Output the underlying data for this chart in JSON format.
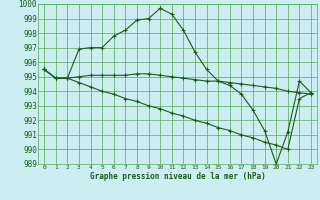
{
  "title": "Graphe pression niveau de la mer (hPa)",
  "background_color": "#cceef0",
  "grid_color": "#55aa55",
  "line_color": "#1a5c1a",
  "line1": [
    995.5,
    994.9,
    994.9,
    996.9,
    997.0,
    997.0,
    997.8,
    998.2,
    998.9,
    999.0,
    999.7,
    999.3,
    998.2,
    996.7,
    995.5,
    994.7,
    994.4,
    993.8,
    992.7,
    991.3,
    989.0,
    991.2,
    994.7,
    993.9
  ],
  "line2": [
    995.5,
    994.9,
    994.9,
    995.0,
    995.1,
    995.1,
    995.1,
    995.1,
    995.2,
    995.2,
    995.1,
    995.0,
    994.9,
    994.8,
    994.7,
    994.7,
    994.6,
    994.5,
    994.4,
    994.3,
    994.2,
    994.0,
    993.9,
    993.8
  ],
  "line3": [
    995.5,
    994.9,
    994.9,
    994.6,
    994.3,
    994.0,
    993.8,
    993.5,
    993.3,
    993.0,
    992.8,
    992.5,
    992.3,
    992.0,
    991.8,
    991.5,
    991.3,
    991.0,
    990.8,
    990.5,
    990.3,
    990.0,
    993.5,
    993.9
  ],
  "xlim": [
    -0.5,
    23.5
  ],
  "ylim": [
    989,
    1000
  ],
  "yticks": [
    989,
    990,
    991,
    992,
    993,
    994,
    995,
    996,
    997,
    998,
    999,
    1000
  ],
  "xticks": [
    0,
    1,
    2,
    3,
    4,
    5,
    6,
    7,
    8,
    9,
    10,
    11,
    12,
    13,
    14,
    15,
    16,
    17,
    18,
    19,
    20,
    21,
    22,
    23
  ],
  "xtick_labels": [
    "0",
    "1",
    "2",
    "3",
    "4",
    "5",
    "6",
    "7",
    "8",
    "9",
    "10",
    "11",
    "12",
    "13",
    "14",
    "15",
    "16",
    "17",
    "18",
    "19",
    "20",
    "21",
    "22",
    "23"
  ]
}
